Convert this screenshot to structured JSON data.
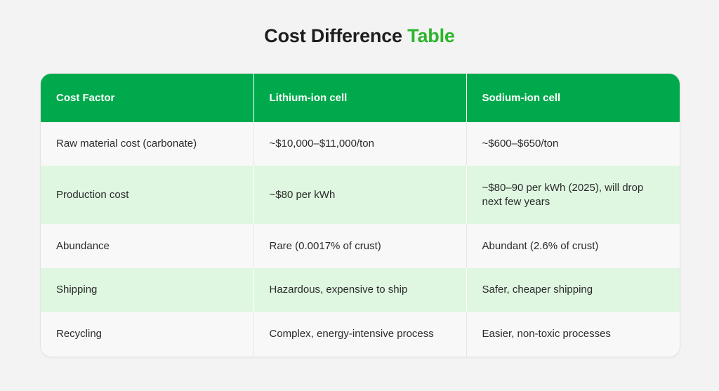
{
  "title": {
    "prefix": "Cost Difference",
    "accent": "Table"
  },
  "table": {
    "headers": [
      "Cost Factor",
      "Lithium-ion cell",
      "Sodium-ion cell"
    ],
    "rows": [
      [
        "Raw material cost (carbonate)",
        "~$10,000–$11,000/ton",
        "~$600–$650/ton"
      ],
      [
        "Production cost",
        "~$80 per kWh",
        "~$80–90 per kWh (2025), will drop next few years"
      ],
      [
        "Abundance",
        "Rare (0.0017% of crust)",
        "Abundant (2.6% of crust)"
      ],
      [
        "Shipping",
        "Hazardous, expensive to ship",
        "Safer, cheaper shipping"
      ],
      [
        "Recycling",
        "Complex, energy-intensive process",
        "Easier, non-toxic processes"
      ]
    ]
  },
  "colors": {
    "header_bg": "#00aa4c",
    "accent_text": "#2db52d",
    "striped_row_bg": "#dff7e1"
  }
}
